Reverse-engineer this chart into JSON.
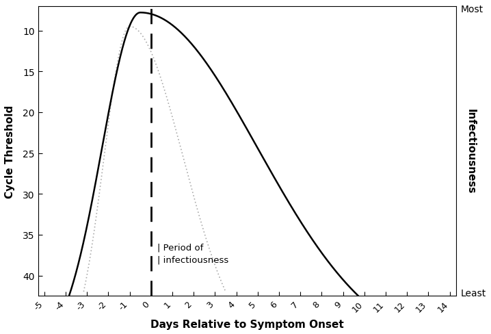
{
  "xlabel": "Days Relative to Symptom Onset",
  "ylabel_left": "Cycle Threshold",
  "ylabel_right": "Infectiousness",
  "right_label_top": "Most",
  "right_label_bottom": "Least",
  "annotation_text": "| Period of\n| infectiousness",
  "xlim": [
    -5.3,
    14.3
  ],
  "ylim": [
    42.5,
    7.0
  ],
  "xticks": [
    -5,
    -4,
    -3,
    -2,
    -1,
    0,
    1,
    2,
    3,
    4,
    5,
    6,
    7,
    8,
    9,
    10,
    11,
    12,
    13,
    14
  ],
  "yticks": [
    10,
    15,
    20,
    25,
    30,
    35,
    40
  ],
  "solid_color": "#000000",
  "dotted_color": "#aaaaaa",
  "dashed_color": "#000000",
  "background_color": "#ffffff",
  "vline_x": 0
}
